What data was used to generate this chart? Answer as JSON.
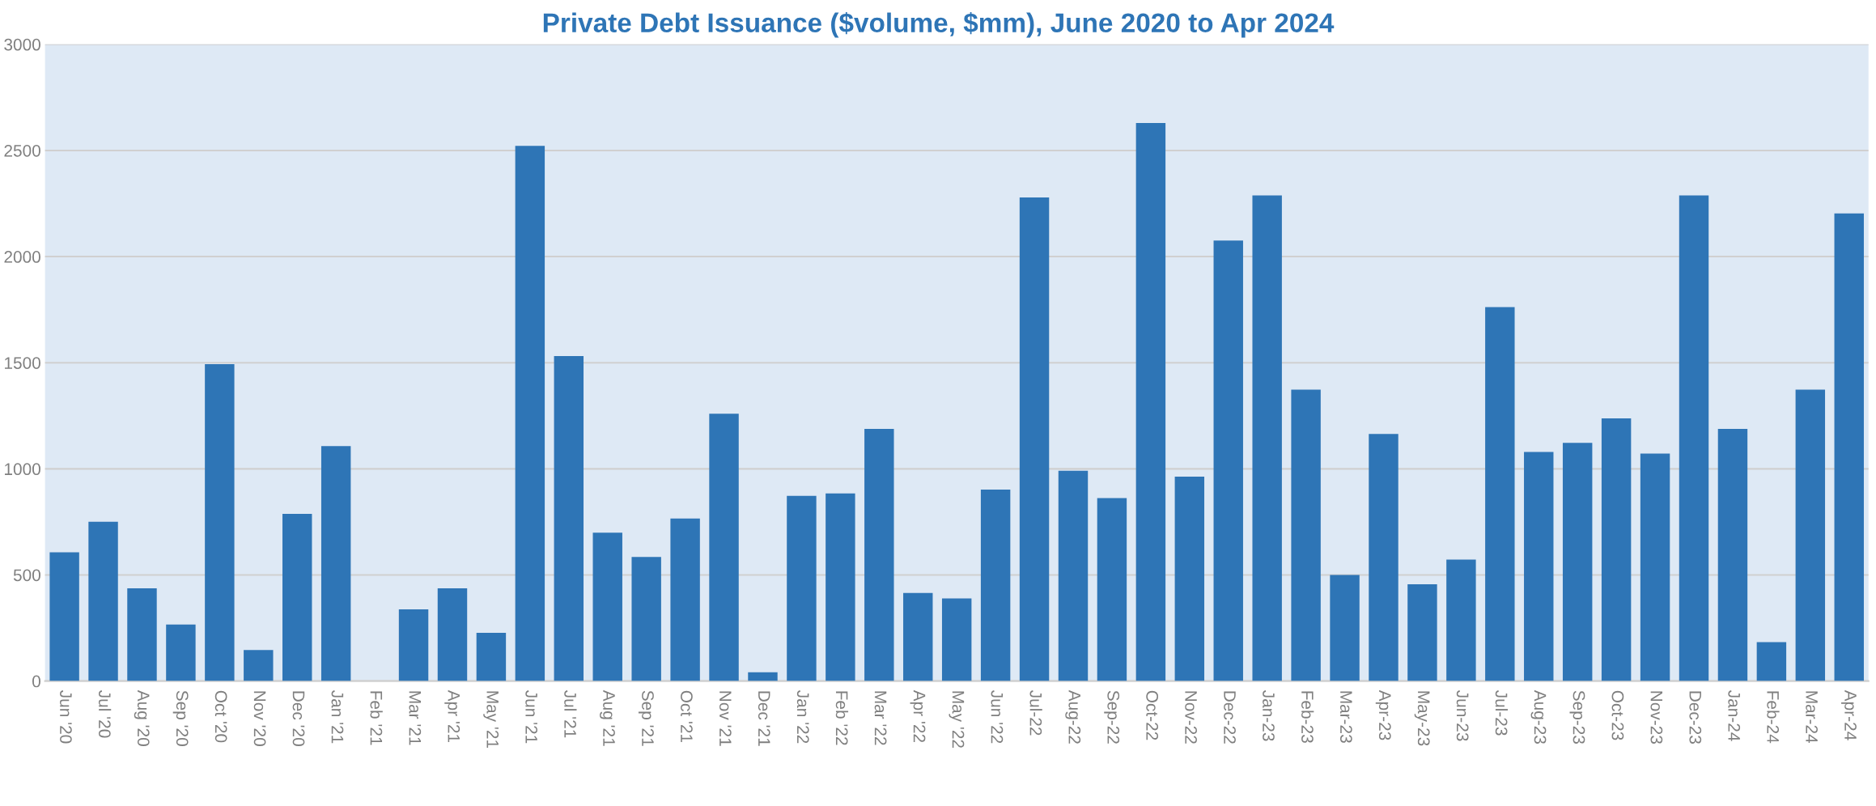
{
  "chart_data": {
    "type": "bar",
    "title": "Private Debt Issuance ($volume, $mm), June 2020 to Apr 2024",
    "categories": [
      "Jun '20",
      "Jul '20",
      "Aug '20",
      "Sep '20",
      "Oct '20",
      "Nov '20",
      "Dec '20",
      "Jan '21",
      "Feb '21",
      "Mar '21",
      "Apr '21",
      "May '21",
      "Jun '21",
      "Jul '21",
      "Aug '21",
      "Sep '21",
      "Oct '21",
      "Nov '21",
      "Dec '21",
      "Jan '22",
      "Feb '22",
      "Mar '22",
      "Apr '22",
      "May '22",
      "Jun '22",
      "Jul-22",
      "Aug-22",
      "Sep-22",
      "Oct-22",
      "Nov-22",
      "Dec-22",
      "Jan-23",
      "Feb-23",
      "Mar-23",
      "Apr-23",
      "May-23",
      "Jun-23",
      "Jul-23",
      "Aug-23",
      "Sep-23",
      "Oct-23",
      "Nov-23",
      "Dec-23",
      "Jan-24",
      "Feb-24",
      "Mar-24",
      "Apr-24"
    ],
    "values": [
      607,
      751,
      437,
      266,
      1493,
      146,
      788,
      1107,
      0,
      338,
      437,
      227,
      2522,
      1531,
      699,
      585,
      766,
      1260,
      41,
      873,
      884,
      1188,
      415,
      389,
      902,
      2279,
      991,
      862,
      2629,
      963,
      2076,
      2288,
      1373,
      500,
      1164,
      456,
      572,
      1762,
      1079,
      1122,
      1238,
      1072,
      2288,
      1188,
      183,
      1373,
      2203
    ],
    "color": "#2e75b6",
    "ylim": [
      0,
      3000
    ],
    "yticks": [
      0,
      500,
      1000,
      1500,
      2000,
      2500,
      3000
    ],
    "grid": "y"
  }
}
